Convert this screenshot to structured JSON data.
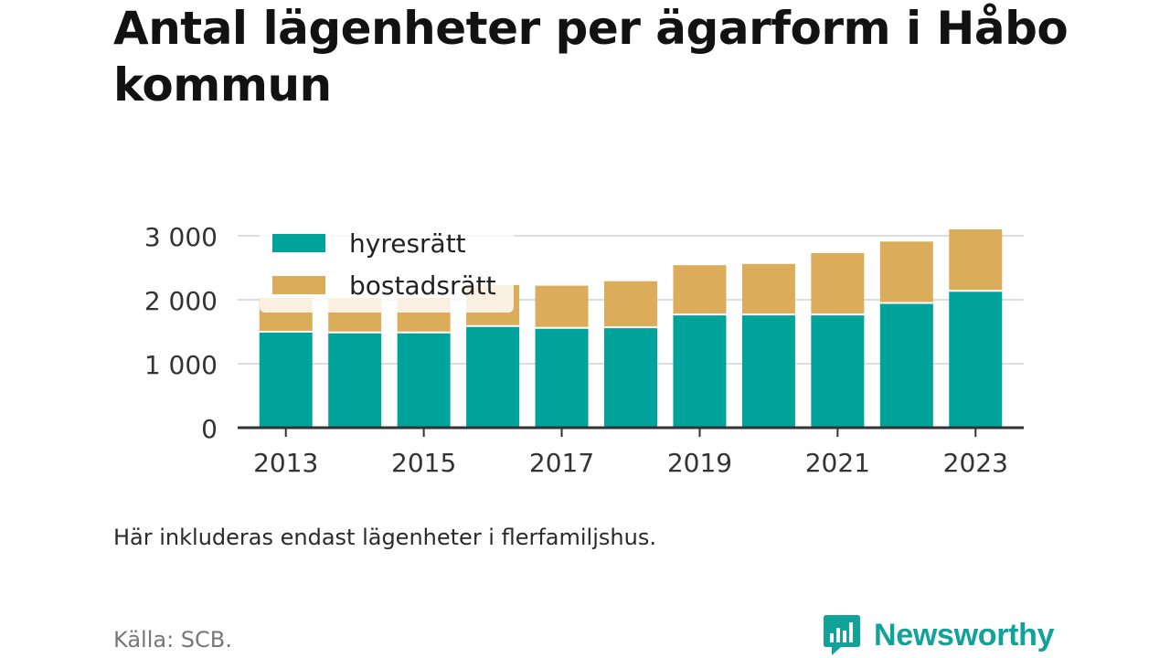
{
  "title": "Antal lägenheter per ägarform i Håbo kommun",
  "note": "Här inkluderas endast lägenheter i flerfamiljshus.",
  "source": "Källa: SCB.",
  "brand": {
    "name": "Newsworthy",
    "icon": "newsworthy-logo-icon",
    "color": "#11a39a"
  },
  "colors": {
    "hyresratt": "#00a39a",
    "bostadsratt": "#dbad5a",
    "grid": "#dddddd",
    "axis": "#333333"
  },
  "chart_data": {
    "type": "bar",
    "stacked": true,
    "categories": [
      "2013",
      "2014",
      "2015",
      "2016",
      "2017",
      "2018",
      "2019",
      "2020",
      "2021",
      "2022",
      "2023"
    ],
    "x_tick_labels": [
      "2013",
      "2015",
      "2017",
      "2019",
      "2021",
      "2023"
    ],
    "y_tick_labels": [
      "0",
      "1 000",
      "2 000",
      "3 000"
    ],
    "y_ticks": [
      0,
      1000,
      2000,
      3000
    ],
    "ylim": [
      0,
      3000
    ],
    "grid": true,
    "legend_position": "top-left",
    "series": [
      {
        "name": "hyresrätt",
        "color": "#00a39a",
        "values": [
          1500,
          1490,
          1490,
          1590,
          1560,
          1570,
          1770,
          1770,
          1770,
          1950,
          2140
        ]
      },
      {
        "name": "bostadsrätt",
        "color": "#dbad5a",
        "values": [
          530,
          540,
          540,
          640,
          660,
          720,
          770,
          790,
          960,
          960,
          960
        ]
      }
    ]
  }
}
